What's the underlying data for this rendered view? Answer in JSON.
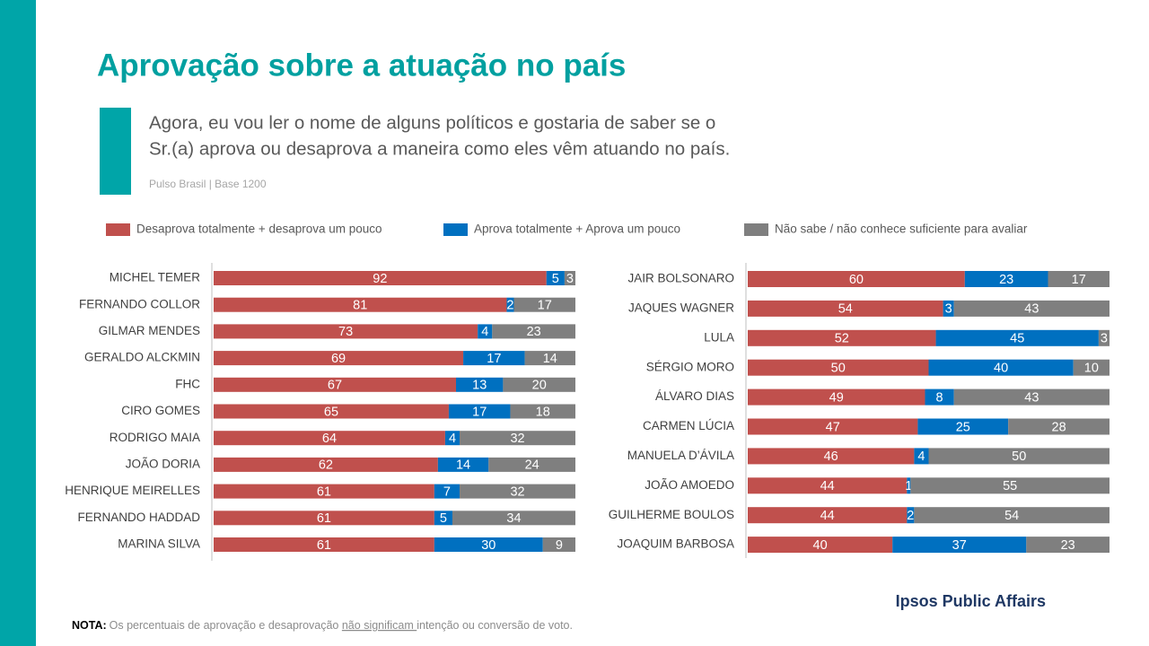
{
  "title": "Aprovação sobre a atuação no país",
  "question": [
    "Agora, eu vou ler o nome de alguns políticos e gostaria de saber se o",
    "Sr.(a) aprova ou desaprova a maneira como eles vêm atuando no país."
  ],
  "source": "Pulso Brasil | Base 1200",
  "brand": "Ipsos Public Affairs",
  "note": {
    "label": "NOTA:",
    "text_before": "Os percentuais de aprovação e desaprovação ",
    "emphasis": "não significam ",
    "text_after": "intenção ou conversão de voto."
  },
  "chart_data": [
    {
      "type": "stacked_bar",
      "xlim": [
        0,
        100
      ],
      "categories": [
        "MICHEL TEMER",
        "FERNANDO COLLOR",
        "GILMAR MENDES",
        "GERALDO ALCKMIN",
        "FHC",
        "CIRO GOMES",
        "RODRIGO MAIA",
        "JOÃO DORIA",
        "HENRIQUE MEIRELLES",
        "FERNANDO HADDAD",
        "MARINA SILVA"
      ],
      "series": [
        {
          "name": "Desaprova totalmente + desaprova um pouco",
          "color": "#c0504d",
          "values": [
            92,
            81,
            73,
            69,
            67,
            65,
            64,
            62,
            61,
            61,
            61
          ]
        },
        {
          "name": "Aprova totalmente + Aprova um pouco",
          "color": "#0070c0",
          "values": [
            5,
            2,
            4,
            17,
            13,
            17,
            4,
            14,
            7,
            5,
            30
          ]
        },
        {
          "name": "Não sabe / não conhece suficiente para avaliar",
          "color": "#7f7f7f",
          "values": [
            3,
            17,
            23,
            14,
            20,
            18,
            32,
            24,
            32,
            34,
            9
          ]
        }
      ]
    },
    {
      "type": "stacked_bar",
      "xlim": [
        0,
        100
      ],
      "categories": [
        "JAIR BOLSONARO",
        "JAQUES WAGNER",
        "LULA",
        "SÉRGIO MORO",
        "ÁLVARO DIAS",
        "CARMEN LÚCIA",
        "MANUELA D’ÁVILA",
        "JOÃO AMOEDO",
        "GUILHERME BOULOS",
        "JOAQUIM BARBOSA"
      ],
      "series": [
        {
          "name": "Desaprova totalmente + desaprova um pouco",
          "color": "#c0504d",
          "values": [
            60,
            54,
            52,
            50,
            49,
            47,
            46,
            44,
            44,
            40
          ]
        },
        {
          "name": "Aprova totalmente + Aprova um pouco",
          "color": "#0070c0",
          "values": [
            23,
            3,
            45,
            40,
            8,
            25,
            4,
            1,
            2,
            37
          ]
        },
        {
          "name": "Não sabe / não conhece suficiente para avaliar",
          "color": "#7f7f7f",
          "values": [
            17,
            43,
            3,
            10,
            43,
            28,
            50,
            55,
            54,
            23
          ]
        }
      ]
    }
  ]
}
